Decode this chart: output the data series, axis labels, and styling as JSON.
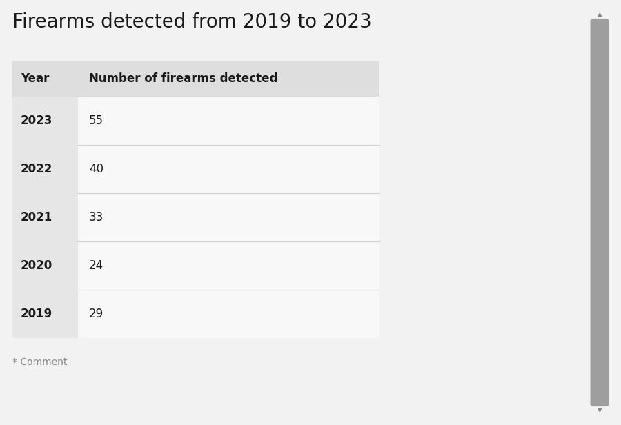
{
  "title": "Firearms detected from 2019 to 2023",
  "title_fontsize": 20,
  "title_color": "#1a1a1a",
  "col_headers": [
    "Year",
    "Number of firearms detected"
  ],
  "rows": [
    [
      "2023",
      "55"
    ],
    [
      "2022",
      "40"
    ],
    [
      "2021",
      "33"
    ],
    [
      "2020",
      "24"
    ],
    [
      "2019",
      "29"
    ]
  ],
  "footer": "* Comment",
  "bg_color": "#f2f2f2",
  "header_bg": "#dedede",
  "year_col_bg": "#e6e6e6",
  "data_cell_bg": "#f8f8f8",
  "divider_color": "#d0d0d0",
  "scrollbar_track": "#f2f2f2",
  "scrollbar_thumb": "#9e9e9e",
  "scrollbar_border": "#e0e0e0",
  "text_color": "#1a1a1a",
  "footer_color": "#888888"
}
